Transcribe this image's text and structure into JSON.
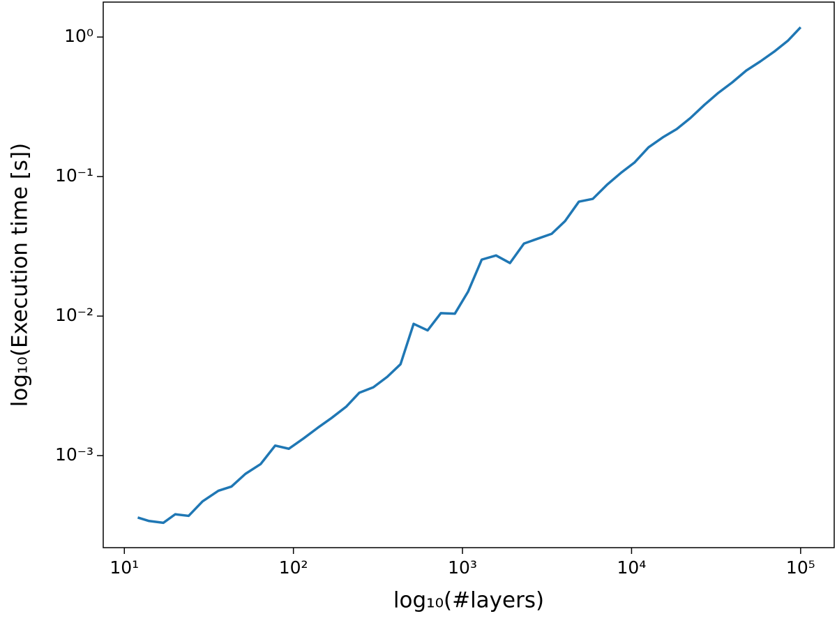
{
  "chart_data": {
    "type": "line",
    "xlabel": "log₁₀(#layers)",
    "ylabel": "log₁₀(Execution time [s])",
    "xscale": "log",
    "yscale": "log",
    "xlim": [
      7.5,
      158000
    ],
    "ylim": [
      0.000219,
      1.78
    ],
    "xticks": [
      {
        "value": 10,
        "label": "10¹"
      },
      {
        "value": 100,
        "label": "10²"
      },
      {
        "value": 1000,
        "label": "10³"
      },
      {
        "value": 10000,
        "label": "10⁴"
      },
      {
        "value": 100000,
        "label": "10⁵"
      }
    ],
    "yticks": [
      {
        "value": 0.001,
        "label": "10⁻³"
      },
      {
        "value": 0.01,
        "label": "10⁻²"
      },
      {
        "value": 0.1,
        "label": "10⁻¹"
      },
      {
        "value": 1,
        "label": "10⁰"
      }
    ],
    "x": [
      12,
      14,
      17,
      20,
      24,
      29,
      36,
      43,
      52,
      64,
      78,
      94,
      115,
      139,
      168,
      205,
      245,
      297,
      359,
      430,
      514,
      622,
      745,
      901,
      1080,
      1300,
      1580,
      1910,
      2310,
      2790,
      3370,
      4040,
      4880,
      5900,
      7140,
      8630,
      10400,
      12600,
      15300,
      18500,
      22300,
      27000,
      32600,
      39400,
      47700,
      57700,
      69700,
      84300,
      100000
    ],
    "series": [
      {
        "color": "#1f77b4",
        "values": [
          0.00036,
          0.00034,
          0.00033,
          0.00038,
          0.00037,
          0.00047,
          0.00056,
          0.0006,
          0.00074,
          0.00087,
          0.00118,
          0.00112,
          0.00133,
          0.00158,
          0.00186,
          0.00224,
          0.00282,
          0.00309,
          0.00367,
          0.00452,
          0.0088,
          0.0079,
          0.0105,
          0.0104,
          0.015,
          0.0254,
          0.0272,
          0.024,
          0.0331,
          0.0359,
          0.0389,
          0.0479,
          0.0661,
          0.0692,
          0.0871,
          0.106,
          0.126,
          0.162,
          0.191,
          0.219,
          0.263,
          0.327,
          0.398,
          0.473,
          0.575,
          0.668,
          0.785,
          0.944,
          1.175
        ]
      }
    ]
  }
}
